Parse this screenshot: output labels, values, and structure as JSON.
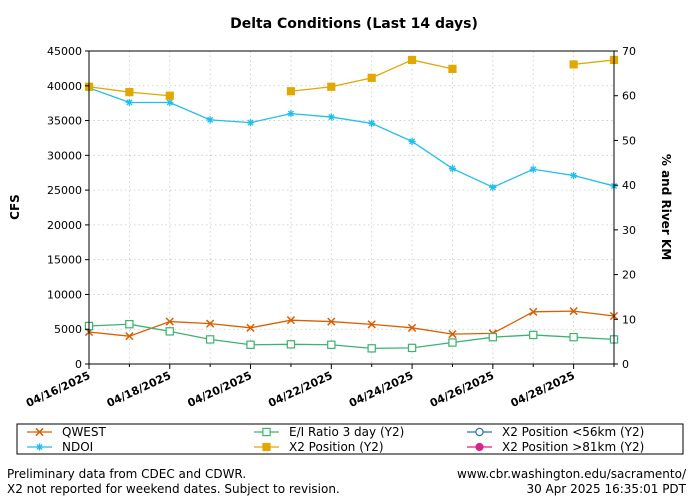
{
  "chart_data": {
    "type": "line",
    "title": "Delta Conditions (Last 14 days)",
    "ylabel": "CFS",
    "y2label": "% and River KM",
    "ylim": [
      0,
      45000
    ],
    "y2lim": [
      0,
      70
    ],
    "yticks": [
      0,
      5000,
      10000,
      15000,
      20000,
      25000,
      30000,
      35000,
      40000,
      45000
    ],
    "y2ticks": [
      0,
      10,
      20,
      30,
      40,
      50,
      60,
      70
    ],
    "grid": true,
    "x": [
      "04/16/2025",
      "04/17/2025",
      "04/18/2025",
      "04/19/2025",
      "04/20/2025",
      "04/21/2025",
      "04/22/2025",
      "04/23/2025",
      "04/24/2025",
      "04/25/2025",
      "04/26/2025",
      "04/27/2025",
      "04/28/2025",
      "04/29/2025"
    ],
    "xticklabels": [
      "04/16/2025",
      "04/18/2025",
      "04/20/2025",
      "04/22/2025",
      "04/24/2025",
      "04/26/2025",
      "04/28/2025"
    ],
    "xtick_index": [
      0,
      2,
      4,
      6,
      8,
      10,
      12
    ],
    "series": [
      {
        "name": "QWEST",
        "axis": "y",
        "color": "#d95f02",
        "marker": "x",
        "values": [
          4600,
          4000,
          6100,
          5800,
          5200,
          6300,
          6100,
          5700,
          5200,
          4300,
          4400,
          7500,
          7600,
          6900
        ]
      },
      {
        "name": "NDOI",
        "axis": "y",
        "color": "#1fbfec",
        "marker": "star",
        "values": [
          39700,
          37600,
          37600,
          35100,
          34700,
          36000,
          35500,
          34600,
          32000,
          28100,
          25400,
          28000,
          27100,
          25600
        ]
      },
      {
        "name": "E/I Ratio 3 day (Y2)",
        "axis": "y2",
        "color": "#3cb371",
        "marker": "square-open",
        "values": [
          8.5,
          8.9,
          7.3,
          5.5,
          4.3,
          4.4,
          4.3,
          3.5,
          3.6,
          4.8,
          6.0,
          6.5,
          6.0,
          5.5
        ]
      },
      {
        "name": "X2 Position (Y2)",
        "axis": "y2",
        "color": "#e0a800",
        "marker": "square",
        "values": [
          62,
          60.8,
          60,
          null,
          null,
          61,
          62,
          64,
          68,
          66,
          null,
          null,
          67,
          68
        ]
      },
      {
        "name": "X2 Position <56km (Y2)",
        "axis": "y2",
        "color": "#1f77b4",
        "marker": "circle-open",
        "values": [
          null,
          null,
          null,
          null,
          null,
          null,
          null,
          null,
          null,
          null,
          null,
          null,
          null,
          null
        ]
      },
      {
        "name": "X2 Position >81km (Y2)",
        "axis": "y2",
        "color": "#e0208a",
        "marker": "circle",
        "values": [
          null,
          null,
          null,
          null,
          null,
          null,
          null,
          null,
          null,
          null,
          null,
          null,
          null,
          null
        ]
      }
    ]
  },
  "footer": {
    "note_line1": "Preliminary data from CDEC and CDWR.",
    "note_line2": "X2 not reported for weekend dates. Subject to revision.",
    "url": "www.cbr.washington.edu/sacramento/",
    "timestamp": "30 Apr 2025 16:35:01 PDT"
  }
}
